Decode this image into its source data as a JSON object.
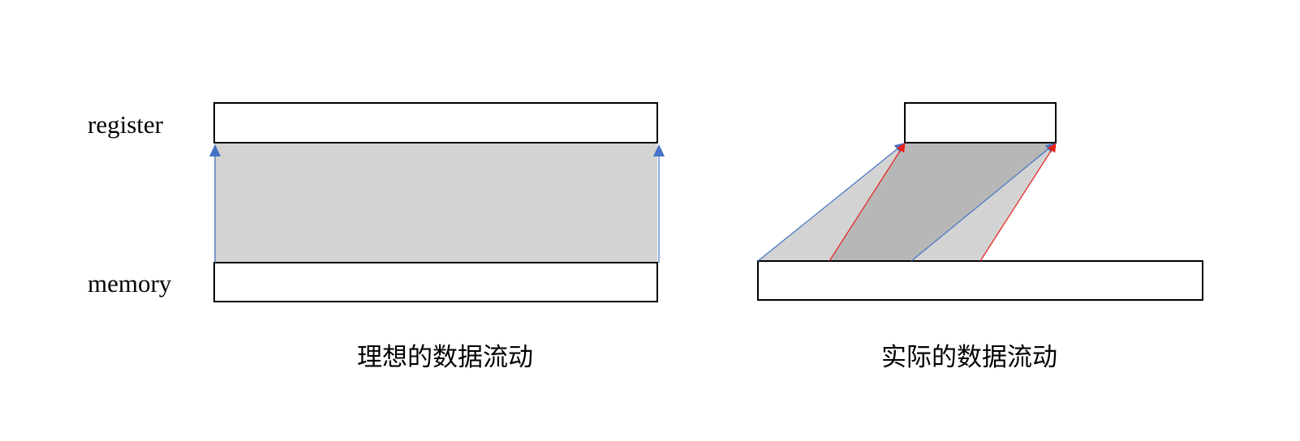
{
  "left_diagram": {
    "register_label": "register",
    "memory_label": "memory",
    "caption": "理想的数据流动"
  },
  "right_diagram": {
    "caption": "实际的数据流动"
  },
  "colors": {
    "box_stroke": "#000000",
    "box_fill": "#ffffff",
    "flow_fill_light": "#d3d3d3",
    "flow_fill_dark": "#b7b7b7",
    "arrow_blue": "#4472c4",
    "arrow_red": "#e8201a"
  }
}
